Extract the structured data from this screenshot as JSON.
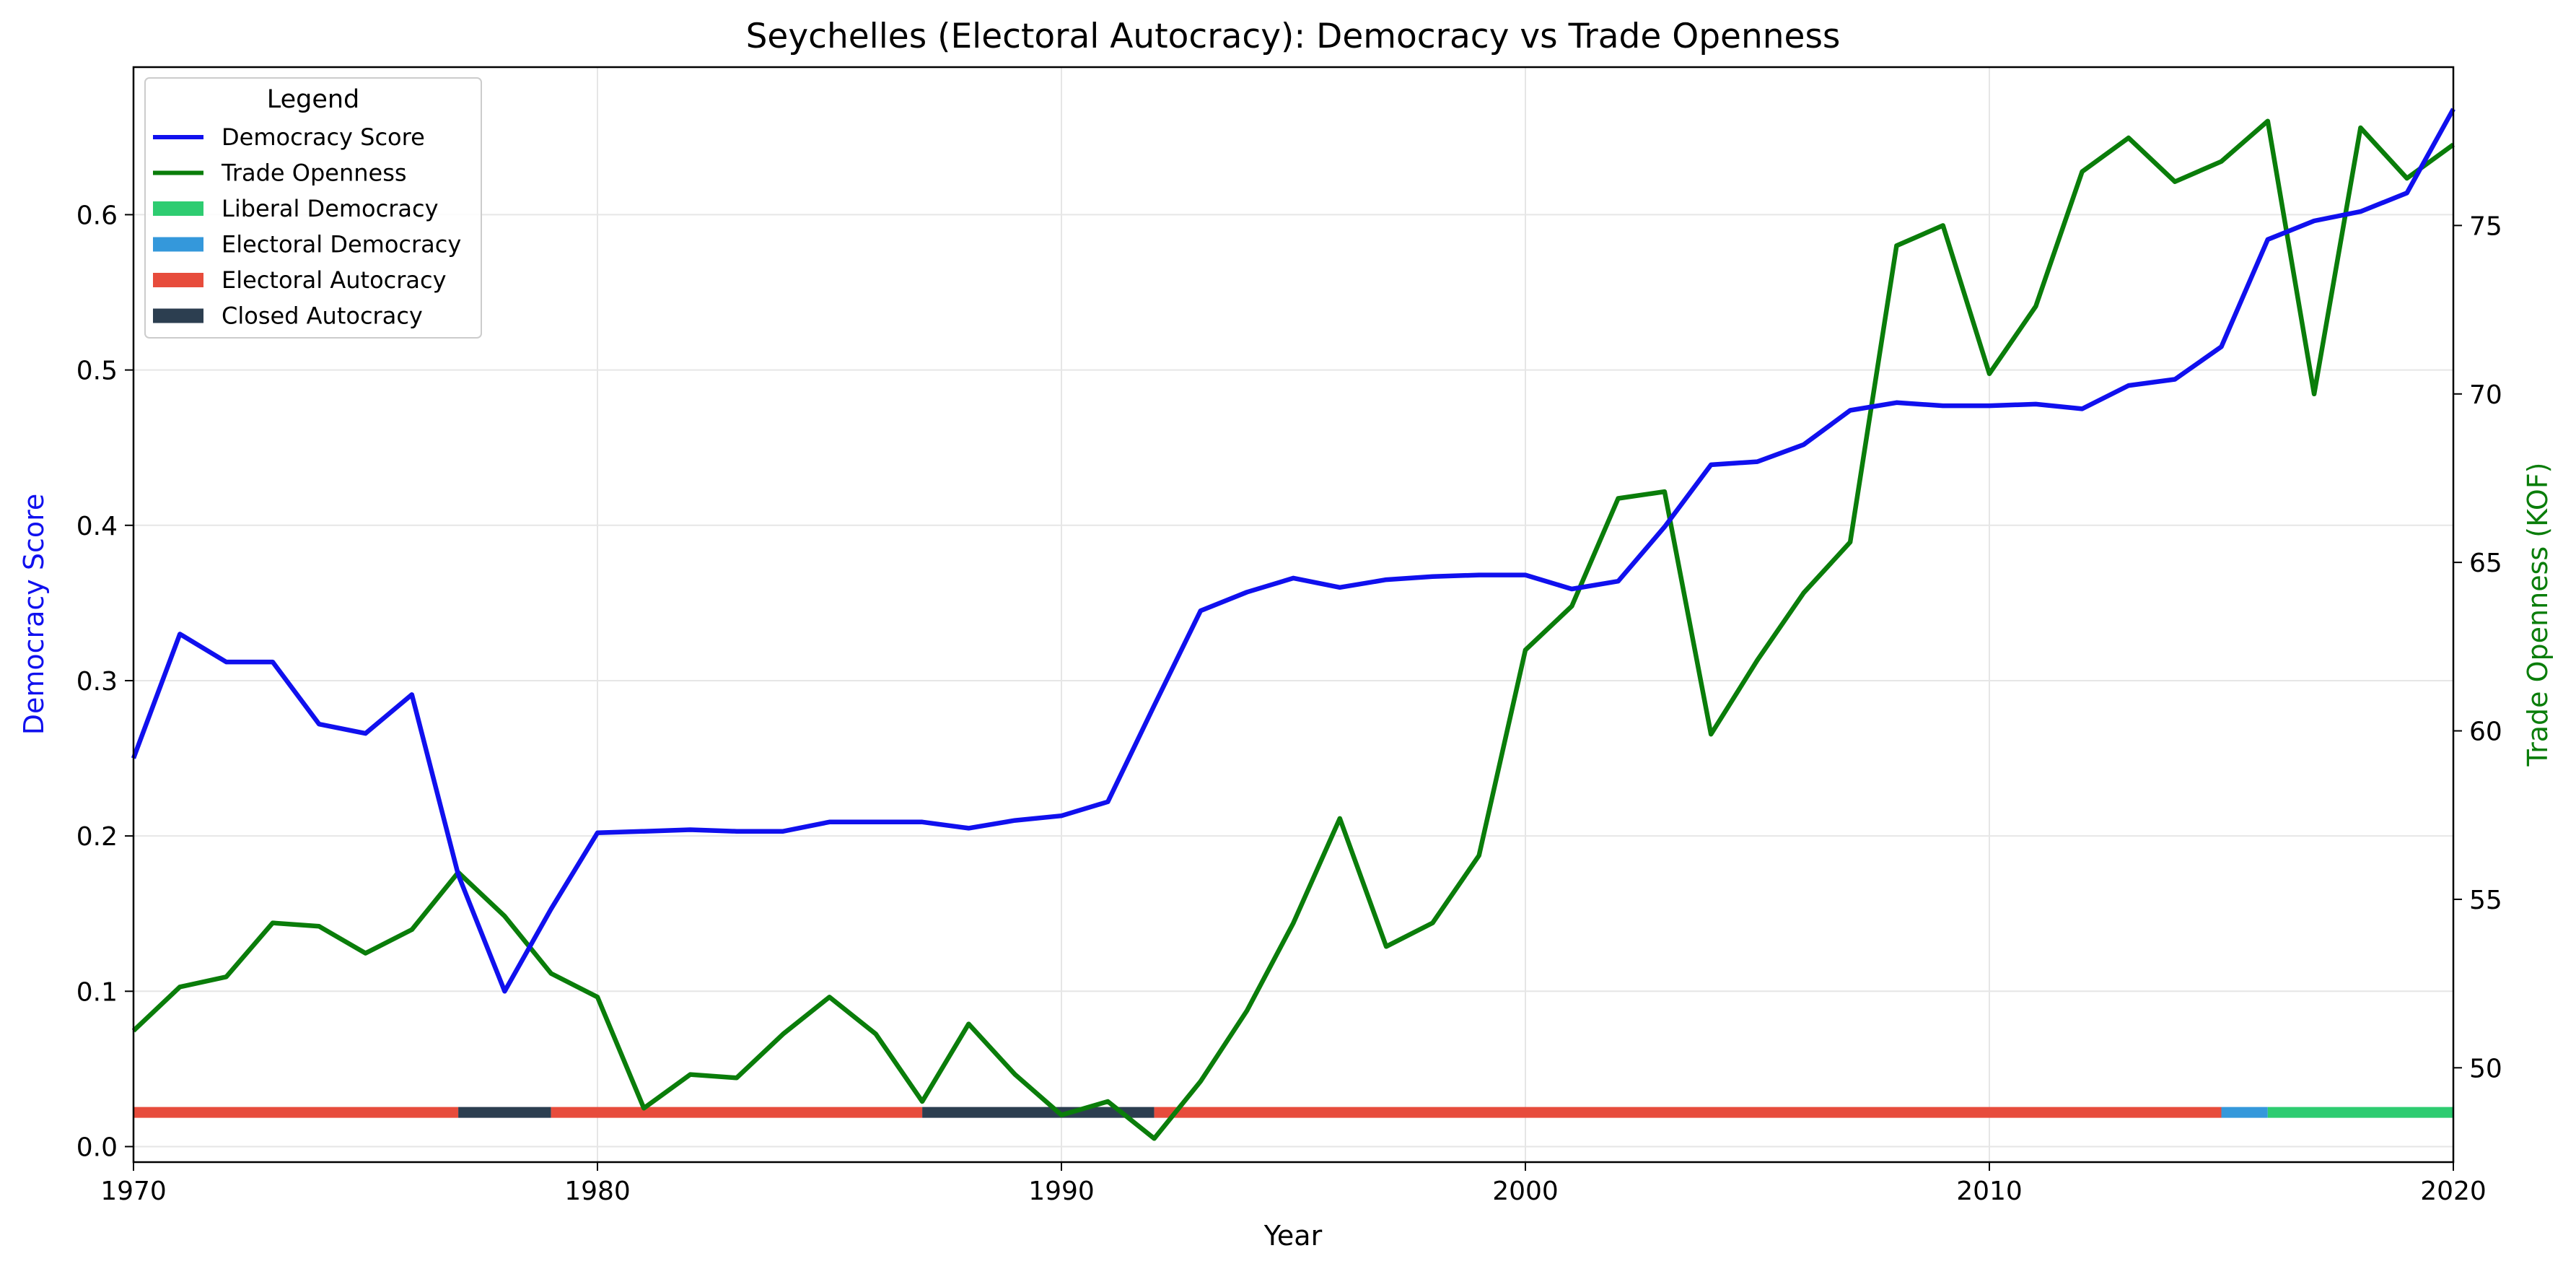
{
  "chart_data": {
    "type": "line",
    "title": "Seychelles (Electoral Autocracy): Democracy vs Trade Openness",
    "xlabel": "Year",
    "ylabel_left": "Democracy Score",
    "ylabel_right": "Trade Openness (KOF)",
    "xlim": [
      1970,
      2020
    ],
    "ylim_left": [
      -0.01,
      0.695
    ],
    "ylim_right": [
      47.2,
      79.7
    ],
    "x_ticks": [
      1970,
      1980,
      1990,
      2000,
      2010,
      2020
    ],
    "y_ticks_left": [
      "0.0",
      "0.1",
      "0.2",
      "0.3",
      "0.4",
      "0.5",
      "0.6"
    ],
    "y_ticks_right": [
      "50",
      "55",
      "60",
      "65",
      "70",
      "75"
    ],
    "grid": true,
    "legend": {
      "title": "Legend",
      "placement": "top-left",
      "entries": [
        "Democracy Score",
        "Trade Openness",
        "Liberal Democracy",
        "Electoral Democracy",
        "Electoral Autocracy",
        "Closed Autocracy"
      ]
    },
    "colors": {
      "democracy": "#1010ee",
      "trade": "#0a7d0a",
      "liberal_democracy": "#2ecc71",
      "electoral_democracy": "#3498db",
      "electoral_autocracy": "#e74c3c",
      "closed_autocracy": "#2c3e50"
    },
    "series": [
      {
        "name": "Democracy Score",
        "axis": "left",
        "x": [
          1970,
          1971,
          1972,
          1973,
          1974,
          1975,
          1976,
          1977,
          1978,
          1979,
          1980,
          1981,
          1982,
          1983,
          1984,
          1985,
          1986,
          1987,
          1988,
          1989,
          1990,
          1991,
          1992,
          1993,
          1994,
          1995,
          1996,
          1997,
          1998,
          1999,
          2000,
          2001,
          2002,
          2003,
          2004,
          2005,
          2006,
          2007,
          2008,
          2009,
          2010,
          2011,
          2012,
          2013,
          2014,
          2015,
          2016,
          2017,
          2018,
          2019,
          2020
        ],
        "values": [
          0.25,
          0.33,
          0.312,
          0.312,
          0.272,
          0.266,
          0.291,
          0.175,
          0.1,
          0.153,
          0.202,
          0.203,
          0.204,
          0.203,
          0.203,
          0.209,
          0.209,
          0.209,
          0.205,
          0.21,
          0.213,
          0.222,
          0.284,
          0.345,
          0.357,
          0.366,
          0.36,
          0.365,
          0.367,
          0.368,
          0.368,
          0.359,
          0.364,
          0.399,
          0.439,
          0.441,
          0.452,
          0.474,
          0.479,
          0.477,
          0.477,
          0.478,
          0.475,
          0.49,
          0.494,
          0.515,
          0.584,
          0.596,
          0.602,
          0.614,
          0.668
        ]
      },
      {
        "name": "Trade Openness",
        "axis": "right",
        "x": [
          1970,
          1971,
          1972,
          1973,
          1974,
          1975,
          1976,
          1977,
          1978,
          1979,
          1980,
          1981,
          1982,
          1983,
          1984,
          1985,
          1986,
          1987,
          1988,
          1989,
          1990,
          1991,
          1992,
          1993,
          1994,
          1995,
          1996,
          1997,
          1998,
          1999,
          2000,
          2001,
          2002,
          2003,
          2004,
          2005,
          2006,
          2007,
          2008,
          2009,
          2010,
          2011,
          2012,
          2013,
          2014,
          2015,
          2016,
          2017,
          2018,
          2019,
          2020
        ],
        "values": [
          51.1,
          52.4,
          52.7,
          54.3,
          54.2,
          53.4,
          54.1,
          55.8,
          54.5,
          52.8,
          52.1,
          48.8,
          49.8,
          49.7,
          51.0,
          52.1,
          51.0,
          49.0,
          51.3,
          49.8,
          48.6,
          49.0,
          47.9,
          49.6,
          51.7,
          54.3,
          57.4,
          53.6,
          54.3,
          56.3,
          62.4,
          63.7,
          66.9,
          67.1,
          59.9,
          62.1,
          64.1,
          65.6,
          74.4,
          75.0,
          70.6,
          72.6,
          76.6,
          77.6,
          76.3,
          76.9,
          78.1,
          70.0,
          77.9,
          76.4,
          77.4
        ]
      }
    ],
    "regime_periods": [
      {
        "regime": "Electoral Autocracy",
        "start": 1970,
        "end": 1977
      },
      {
        "regime": "Closed Autocracy",
        "start": 1977,
        "end": 1979
      },
      {
        "regime": "Electoral Autocracy",
        "start": 1979,
        "end": 1987
      },
      {
        "regime": "Closed Autocracy",
        "start": 1987,
        "end": 1992
      },
      {
        "regime": "Electoral Autocracy",
        "start": 1992,
        "end": 2015
      },
      {
        "regime": "Electoral Democracy",
        "start": 2015,
        "end": 2016
      },
      {
        "regime": "Liberal Democracy",
        "start": 2016,
        "end": 2020
      }
    ],
    "regime_band_level": 0.022
  }
}
